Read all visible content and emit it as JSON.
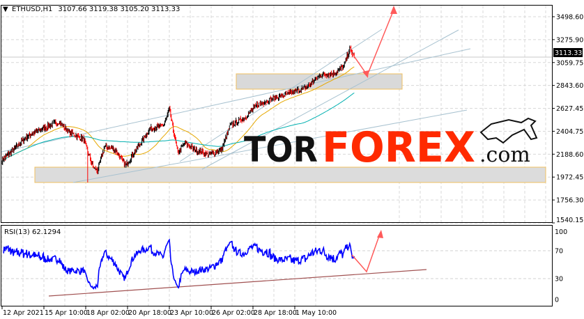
{
  "header": {
    "symbol": "ETHUSD,H1",
    "ohlc": "3107.66 3119.38 3105.20 3113.33",
    "menu_icon": "triangle-down-icon"
  },
  "indicator": {
    "label": "RSI(13) 62.1294"
  },
  "watermark": {
    "brand": "TORFOREX.com",
    "part1": "TOR",
    "part2": "FOREX",
    "part3": ".com",
    "logo_icon": "bull-icon"
  },
  "colors": {
    "bull": "#000000",
    "bear": "#ff0000",
    "ma_fast": "#e6a800",
    "ma_slow": "#00b0b0",
    "rsi": "#0000ff",
    "trend": "#a0bccc",
    "rsi_trend": "#a05050",
    "arrow": "#ff5050",
    "brand_red": "#ff2a00"
  },
  "chart_data": [
    {
      "type": "candlestick",
      "symbol": "ETHUSD",
      "timeframe": "H1",
      "current_price": 3113.33,
      "current_price_label": "3113.33",
      "y_ticks": [
        "3498.60",
        "3275.90",
        "3059.75",
        "2843.60",
        "2627.45",
        "2404.75",
        "2188.60",
        "1972.45",
        "1756.30",
        "1540.15"
      ],
      "ylim": [
        1540.15,
        3498.6
      ],
      "x_ticks": [
        "12 Apr 2021",
        "15 Apr 10:00",
        "18 Apr 02:00",
        "20 Apr 18:00",
        "23 Apr 10:00",
        "26 Apr 02:00",
        "28 Apr 18:00",
        "1 May 10:00"
      ],
      "grid": true,
      "approx_close_path": [
        [
          "2021-04-12 00:00",
          2135
        ],
        [
          "2021-04-14 03:00",
          2367
        ],
        [
          "2021-04-15 06:00",
          2433
        ],
        [
          "2021-04-16 09:00",
          2500
        ],
        [
          "2021-04-17 01:00",
          2400
        ],
        [
          "2021-04-17 23:00",
          2334
        ],
        [
          "2021-04-18 13:00",
          2070
        ],
        [
          "2021-04-18 20:00",
          2036
        ],
        [
          "2021-04-19 07:00",
          2268
        ],
        [
          "2021-04-19 23:00",
          2235
        ],
        [
          "2021-04-20 15:00",
          2083
        ],
        [
          "2021-04-21 07:00",
          2235
        ],
        [
          "2021-04-22 04:00",
          2433
        ],
        [
          "2021-04-23 01:00",
          2466
        ],
        [
          "2021-04-23 10:00",
          2612
        ],
        [
          "2021-04-23 23:00",
          2202
        ],
        [
          "2021-04-24 09:00",
          2300
        ],
        [
          "2021-04-25 01:00",
          2235
        ],
        [
          "2021-04-25 23:00",
          2188
        ],
        [
          "2021-04-26 18:00",
          2235
        ],
        [
          "2021-04-27 07:00",
          2466
        ],
        [
          "2021-04-28 04:00",
          2533
        ],
        [
          "2021-04-29 01:00",
          2665
        ],
        [
          "2021-04-30 04:00",
          2731
        ],
        [
          "2021-05-01 07:00",
          2778
        ],
        [
          "2021-05-02 04:00",
          2830
        ],
        [
          "2021-05-03 01:00",
          2943
        ],
        [
          "2021-05-03 23:00",
          2963
        ],
        [
          "2021-05-04 13:00",
          3029
        ],
        [
          "2021-05-04 22:00",
          3194
        ],
        [
          "2021-05-05 05:00",
          3113.33
        ]
      ],
      "lowest_low": 1924,
      "support_zones": [
        [
          2843,
          2990
        ],
        [
          1900,
          2040
        ]
      ],
      "moving_averages": [
        "fast",
        "slow"
      ]
    },
    {
      "type": "line",
      "name": "RSI(13)",
      "last_value": 62.1294,
      "y_ticks": [
        "100",
        "70",
        "30",
        "0"
      ],
      "ylim": [
        0,
        100
      ],
      "levels": [
        70,
        30
      ]
    }
  ]
}
